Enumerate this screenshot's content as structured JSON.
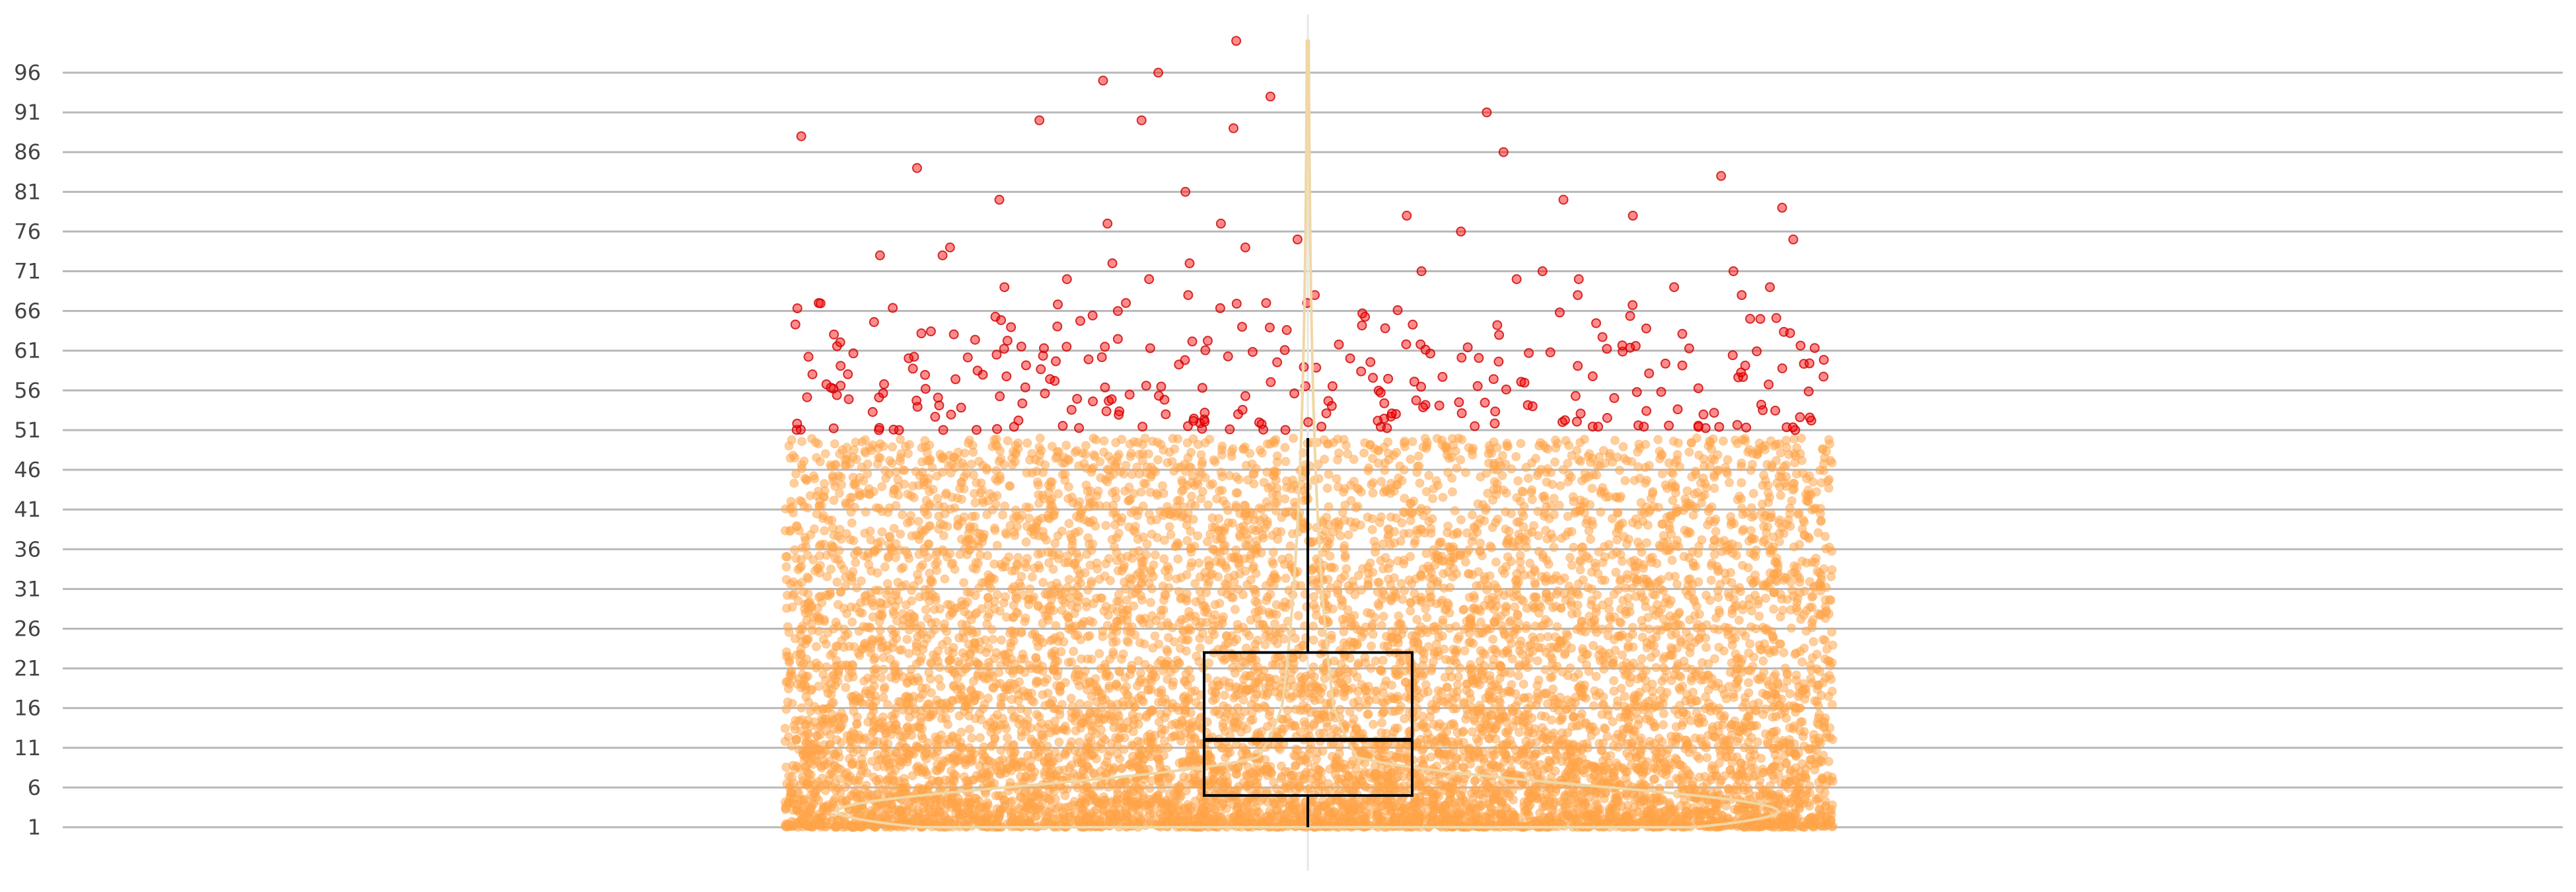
{
  "chart_data": {
    "type": "scatter",
    "subtype": "violin-box-jitter",
    "title": "",
    "xlabel": "",
    "ylabel": "",
    "ylim": [
      1,
      100
    ],
    "yticks": [
      1,
      6,
      11,
      16,
      21,
      26,
      31,
      36,
      41,
      46,
      51,
      56,
      61,
      66,
      71,
      76,
      81,
      86,
      91,
      96
    ],
    "grid": true,
    "legend": "none",
    "boxplot": {
      "whisker_low": 1,
      "q1": 5,
      "median": 12,
      "q3": 23,
      "whisker_high": 50
    },
    "outlier_threshold": 51,
    "series": [
      {
        "role": "inlier",
        "color": "#ffa64d",
        "count": 9000,
        "range": [
          1,
          50
        ]
      },
      {
        "role": "outlier",
        "color": "#ff0000",
        "count": 320,
        "range": [
          51,
          100
        ],
        "values": [
          100,
          96,
          95,
          93,
          91,
          90,
          90,
          89,
          88,
          86,
          84,
          83,
          81,
          80,
          80,
          79,
          78,
          78,
          77,
          77,
          76,
          75,
          75,
          74,
          74,
          73,
          73,
          72,
          72,
          71,
          71,
          71,
          70,
          70,
          70,
          70,
          69,
          69,
          69,
          68,
          68,
          68,
          68,
          67,
          67,
          67,
          67
        ]
      }
    ],
    "violin": {
      "color": "#f0d7a4",
      "peak_value": 3,
      "tail_top": 100
    },
    "colors": {
      "inlier": "#ffa64d",
      "outlier": "#ff0000",
      "violin": "#f0d7a4",
      "box": "#000000",
      "grid": "#b8b8b8"
    }
  }
}
